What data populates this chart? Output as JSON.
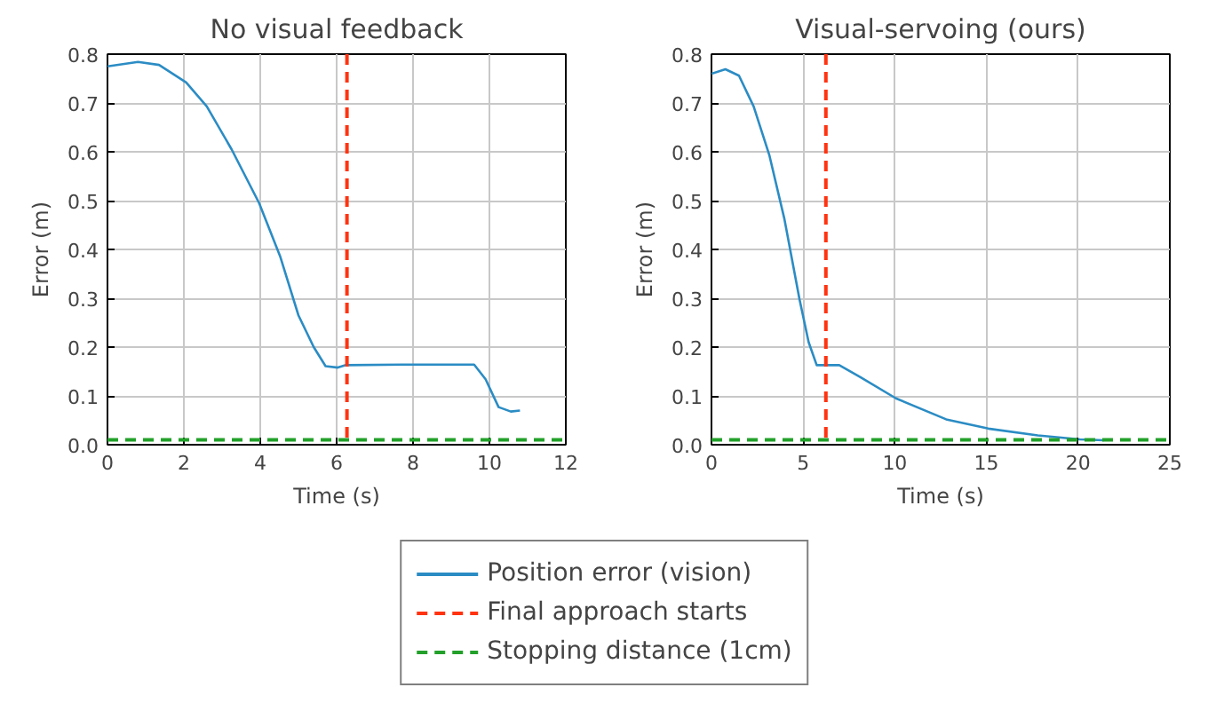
{
  "chart_data": [
    {
      "type": "line",
      "title": "No visual feedback",
      "xlabel": "Time (s)",
      "ylabel": "Error (m)",
      "xlim": [
        0,
        12
      ],
      "xticks": [
        0,
        2,
        4,
        6,
        8,
        10,
        12
      ],
      "ylim": [
        0,
        0.8
      ],
      "yticks": [
        {
          "value": 0,
          "label": "0.0"
        },
        0.1,
        0.2,
        0.3,
        0.4,
        0.5,
        0.6,
        0.7,
        0.8
      ],
      "grid": true,
      "legend": "bottom",
      "line_style": "solid",
      "series": [
        {
          "name": "Position error (vision)",
          "color": "#2b8cc4",
          "x": [
            0,
            0.8,
            1.35,
            2.06,
            2.6,
            3.25,
            3.97,
            4.52,
            5.0,
            5.4,
            5.71,
            6.03,
            6.24,
            7.7,
            9.6,
            9.9,
            10.24,
            10.56,
            10.8
          ],
          "values": [
            0.775,
            0.784,
            0.778,
            0.742,
            0.693,
            0.605,
            0.495,
            0.386,
            0.265,
            0.2,
            0.161,
            0.158,
            0.163,
            0.164,
            0.164,
            0.134,
            0.077,
            0.068,
            0.07
          ]
        }
      ],
      "ref_lines": [
        {
          "axis": "x",
          "value": 6.27,
          "label": "Final approach starts",
          "color": "#ff3311",
          "line_style": "dashed"
        },
        {
          "axis": "y",
          "value": 0.01,
          "label": "Stopping distance (1cm)",
          "color": "#22a02a",
          "line_style": "dashed"
        }
      ]
    },
    {
      "type": "line",
      "title": "Visual-servoing (ours)",
      "xlabel": "Time (s)",
      "ylabel": "Error (m)",
      "xlim": [
        0,
        25
      ],
      "xticks": [
        0,
        5,
        10,
        15,
        20,
        25
      ],
      "ylim": [
        0,
        0.8
      ],
      "yticks": [
        {
          "value": 0,
          "label": "0.0"
        },
        0.1,
        0.2,
        0.3,
        0.4,
        0.5,
        0.6,
        0.7,
        0.8
      ],
      "grid": true,
      "line_style": "solid",
      "series": [
        {
          "color": "#2b8cc4",
          "x": [
            0,
            0.76,
            1.5,
            2.3,
            3.15,
            3.98,
            4.8,
            5.3,
            5.74,
            6.97,
            8.1,
            10.06,
            12.8,
            15.1,
            17.8,
            20.1,
            21.4
          ],
          "values": [
            0.76,
            0.769,
            0.756,
            0.693,
            0.594,
            0.462,
            0.298,
            0.21,
            0.163,
            0.163,
            0.139,
            0.095,
            0.052,
            0.033,
            0.019,
            0.011,
            0.009
          ]
        }
      ],
      "ref_lines": [
        {
          "axis": "x",
          "value": 6.24,
          "color": "#ff3311",
          "line_style": "dashed"
        },
        {
          "axis": "y",
          "value": 0.01,
          "color": "#22a02a",
          "line_style": "dashed"
        }
      ]
    }
  ]
}
